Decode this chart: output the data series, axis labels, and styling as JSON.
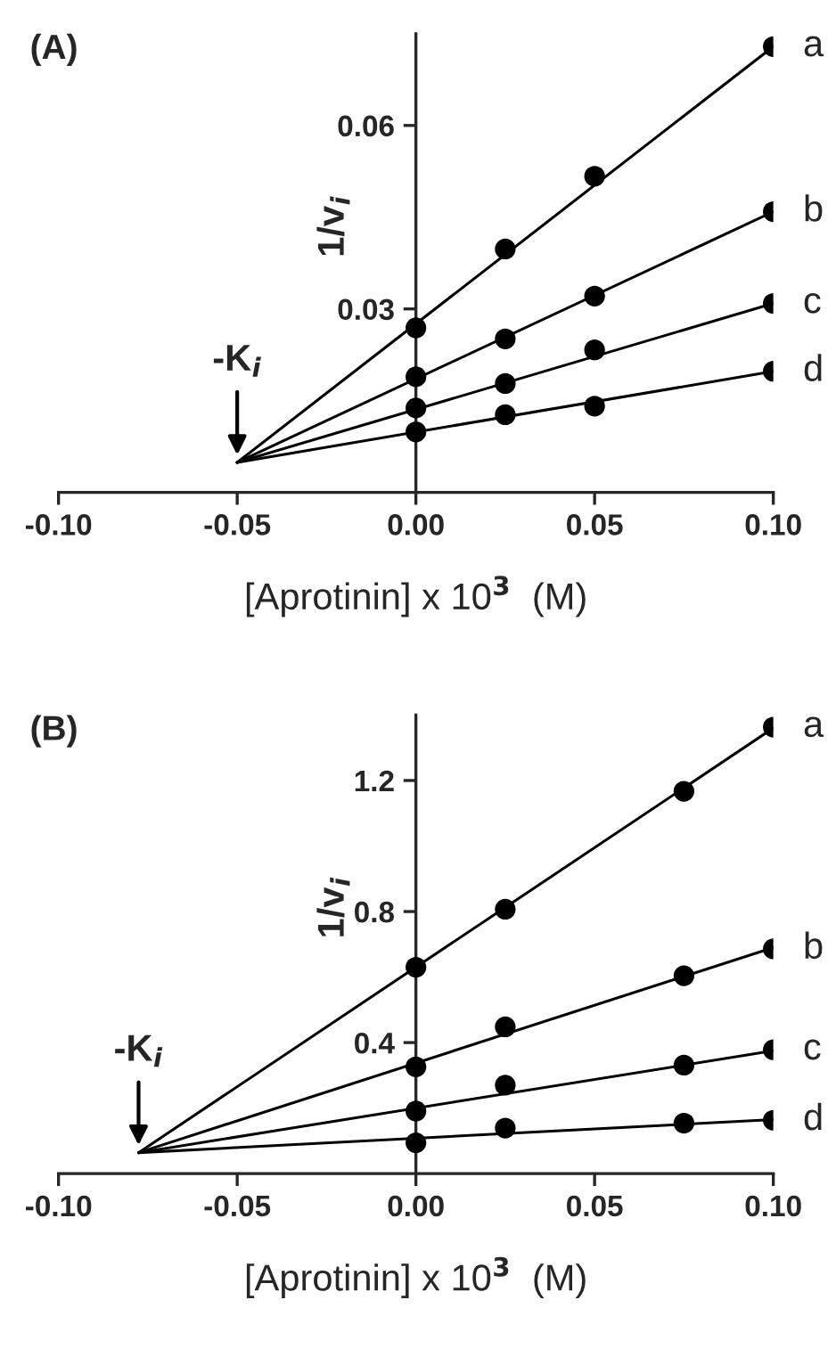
{
  "chart_data": [
    {
      "type": "scatter",
      "title": "(A)",
      "xlabel": "[Aprotinin] x 10$^{3}$  (M)",
      "ylabel": "1/v$_{i}$",
      "marker": "circle",
      "grid": false,
      "legend": false,
      "xlim": [
        -0.1,
        0.1
      ],
      "xticks": [
        {
          "value": -0.1,
          "label": "-0.10"
        },
        {
          "value": -0.05,
          "label": "-0.05"
        },
        {
          "value": 0,
          "label": "0.00"
        },
        {
          "value": 0.05,
          "label": "0.05"
        },
        {
          "value": 0.1,
          "label": "0.10"
        }
      ],
      "ylim": [
        0,
        0.075
      ],
      "yticks": [
        0.03,
        0.06
      ],
      "annotations": [
        {
          "text": "-K$_{i}$",
          "x": -0.05,
          "y": 0.0049
        }
      ],
      "series": [
        {
          "name": "a",
          "color": "#000000",
          "x": [
            0,
            0.025,
            0.05,
            0.1
          ],
          "values": [
            0.0269,
            0.0398,
            0.0517,
            0.0729
          ]
        },
        {
          "name": "b",
          "color": "#000000",
          "x": [
            0,
            0.025,
            0.05,
            0.1
          ],
          "values": [
            0.0189,
            0.0251,
            0.0321,
            0.0459
          ]
        },
        {
          "name": "c",
          "color": "#000000",
          "x": [
            0,
            0.025,
            0.05,
            0.1
          ],
          "values": [
            0.0138,
            0.0178,
            0.0233,
            0.0309
          ]
        },
        {
          "name": "d",
          "color": "#000000",
          "x": [
            0,
            0.025,
            0.05,
            0.1
          ],
          "values": [
            0.0099,
            0.0127,
            0.0141,
            0.0198
          ]
        },
        {
          "type": "line",
          "marker": "none",
          "color": "#000000",
          "x": [
            -0.05,
            0.1
          ],
          "values": [
            0.0049,
            0.0729
          ]
        },
        {
          "type": "line",
          "marker": "none",
          "color": "#000000",
          "x": [
            -0.05,
            0.1
          ],
          "values": [
            0.0049,
            0.0459
          ]
        },
        {
          "type": "line",
          "marker": "none",
          "color": "#000000",
          "x": [
            -0.05,
            0.1
          ],
          "values": [
            0.0049,
            0.0309
          ]
        },
        {
          "type": "line",
          "marker": "none",
          "color": "#000000",
          "x": [
            -0.05,
            0.1
          ],
          "values": [
            0.0049,
            0.0198
          ]
        }
      ]
    },
    {
      "type": "scatter",
      "title": "(B)",
      "xlabel": "[Aprotinin] x 10$^{3}$  (M)",
      "ylabel": "1/v$_{i}$",
      "marker": "circle",
      "grid": false,
      "legend": false,
      "xlim": [
        -0.1,
        0.1
      ],
      "xticks": [
        {
          "value": -0.1,
          "label": "-0.10"
        },
        {
          "value": -0.05,
          "label": "-0.05"
        },
        {
          "value": 0,
          "label": "0.00"
        },
        {
          "value": 0.05,
          "label": "0.05"
        },
        {
          "value": 0.1,
          "label": "0.10"
        }
      ],
      "ylim": [
        0,
        1.4
      ],
      "yticks": [
        0.4,
        0.8,
        1.2
      ],
      "annotations": [
        {
          "text": "-K$_{i}$",
          "x": -0.0776,
          "y": 0.064
        }
      ],
      "series": [
        {
          "name": "a",
          "color": "#000000",
          "x": [
            0,
            0.025,
            0.075,
            0.1
          ],
          "values": [
            0.63,
            0.807,
            1.167,
            1.363
          ]
        },
        {
          "name": "b",
          "color": "#000000",
          "x": [
            0,
            0.025,
            0.075,
            0.1
          ],
          "values": [
            0.326,
            0.448,
            0.604,
            0.686
          ]
        },
        {
          "name": "c",
          "color": "#000000",
          "x": [
            0,
            0.025,
            0.075,
            0.1
          ],
          "values": [
            0.191,
            0.27,
            0.331,
            0.378
          ]
        },
        {
          "name": "d",
          "color": "#000000",
          "x": [
            0,
            0.025,
            0.075,
            0.1
          ],
          "values": [
            0.094,
            0.139,
            0.154,
            0.163
          ]
        },
        {
          "type": "line",
          "marker": "none",
          "color": "#000000",
          "x": [
            -0.0776,
            0.1
          ],
          "values": [
            0.064,
            1.36
          ]
        },
        {
          "type": "line",
          "marker": "none",
          "color": "#000000",
          "x": [
            -0.0776,
            0.1
          ],
          "values": [
            0.064,
            0.69
          ]
        },
        {
          "type": "line",
          "marker": "none",
          "color": "#000000",
          "x": [
            -0.0776,
            0.1
          ],
          "values": [
            0.064,
            0.375
          ]
        },
        {
          "type": "line",
          "marker": "none",
          "color": "#000000",
          "x": [
            -0.0776,
            0.1
          ],
          "values": [
            0.064,
            0.165
          ]
        }
      ]
    }
  ]
}
